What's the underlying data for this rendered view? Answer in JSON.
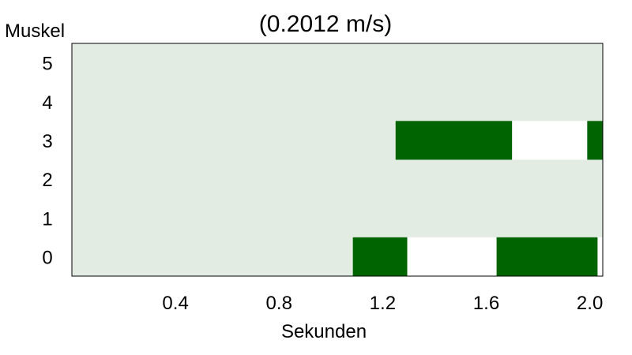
{
  "chart_data": {
    "type": "heatmap",
    "title": "(0.2012 m/s)",
    "xlabel": "Sekunden",
    "ylabel": "Muskel",
    "xlim": [
      0.0,
      2.05
    ],
    "x_ticks": [
      "0.4",
      "0.8",
      "1.2",
      "1.6",
      "2.0"
    ],
    "x_tick_values": [
      0.4,
      0.8,
      1.2,
      1.6,
      2.0
    ],
    "rows": [
      "0",
      "1",
      "2",
      "3",
      "4",
      "5"
    ],
    "grid": false,
    "colors": {
      "background": "#e3ece3",
      "active": "#006400",
      "gap": "#ffffff"
    },
    "segments": [
      {
        "row": "0",
        "start": 1.085,
        "end": 1.295,
        "state": "active"
      },
      {
        "row": "0",
        "start": 1.295,
        "end": 1.64,
        "state": "gap"
      },
      {
        "row": "0",
        "start": 1.64,
        "end": 2.03,
        "state": "active"
      },
      {
        "row": "0",
        "start": 2.03,
        "end": 2.05,
        "state": "gap"
      },
      {
        "row": "3",
        "start": 1.25,
        "end": 1.7,
        "state": "active"
      },
      {
        "row": "3",
        "start": 1.7,
        "end": 1.99,
        "state": "gap"
      },
      {
        "row": "3",
        "start": 1.99,
        "end": 2.05,
        "state": "active"
      }
    ]
  }
}
